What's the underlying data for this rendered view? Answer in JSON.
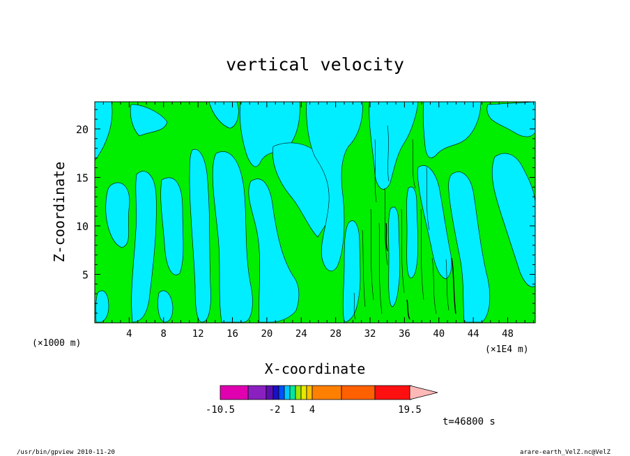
{
  "chart_data": {
    "type": "heatmap",
    "title": "vertical velocity",
    "xlabel": "X-coordinate",
    "ylabel": "Z-coordinate",
    "x_unit_left": "(×1000 m)",
    "x_unit_right": "(×1E4 m)",
    "xlim": [
      0,
      51.2
    ],
    "ylim": [
      0,
      22.8
    ],
    "x_ticks": [
      4,
      8,
      12,
      16,
      20,
      24,
      28,
      32,
      36,
      40,
      44,
      48
    ],
    "y_ticks": [
      5,
      10,
      15,
      20
    ],
    "x_tick_labels": [
      "4",
      "8",
      "12",
      "16",
      "20",
      "24",
      "28",
      "32",
      "36",
      "40",
      "44",
      "48"
    ],
    "y_tick_labels": [
      "5",
      "10",
      "15",
      "20"
    ],
    "colors": {
      "positive_small": "#00ee00",
      "negative_small": "#00eeff",
      "contour_line": "#000000"
    },
    "colorbar": {
      "colors": [
        "#e000b0",
        "#8a20c0",
        "#5a10b0",
        "#1a10c8",
        "#0050ff",
        "#00c8ff",
        "#00e8a0",
        "#a0e800",
        "#e8e800",
        "#ffc000",
        "#ff8000",
        "#ff6000",
        "#ff1010",
        "#ff8080",
        "#ffb8b8"
      ],
      "labels": [
        {
          "text": "-10.5",
          "value": -10.5
        },
        {
          "text": "-2",
          "value": -2
        },
        {
          "text": "1",
          "value": 1
        },
        {
          "text": "4",
          "value": 4
        },
        {
          "text": "19.5",
          "value": 19.5
        }
      ]
    },
    "time_label": "t=46800 s"
  },
  "footer": {
    "left": "/usr/bin/gpview  2010-11-20",
    "right": "arare-earth_VelZ.nc@VelZ"
  }
}
